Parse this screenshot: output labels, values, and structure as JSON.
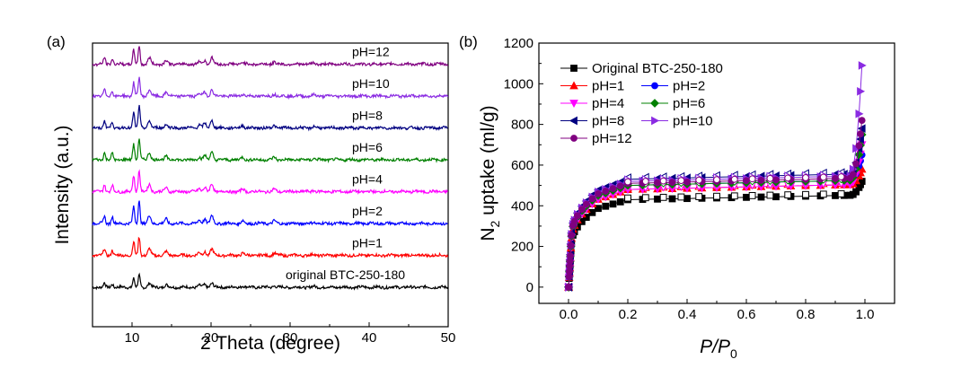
{
  "chart_data": [
    {
      "panel_label": "(a)",
      "type": "line",
      "xlabel": "2 Theta (degree)",
      "ylabel": "Intensity (a.u.)",
      "xlim": [
        5,
        50
      ],
      "xticks": [
        10,
        20,
        30,
        40,
        50
      ],
      "yticks_shown": false,
      "peak_positions_2theta": [
        6.5,
        7.5,
        10.2,
        10.9,
        12.2,
        14.3,
        18.5,
        19.2,
        20.1,
        24.0,
        28.0,
        33.0
      ],
      "series": [
        {
          "name": "original BTC-250-180",
          "color": "#000000",
          "offset": 0,
          "peak_height": 0.55
        },
        {
          "name": "pH=1",
          "color": "#ff0000",
          "offset": 1,
          "peak_height": 0.85
        },
        {
          "name": "pH=2",
          "color": "#0000ff",
          "offset": 2,
          "peak_height": 1.05
        },
        {
          "name": "pH=4",
          "color": "#ff00ff",
          "offset": 3,
          "peak_height": 1.0
        },
        {
          "name": "pH=6",
          "color": "#008000",
          "offset": 4,
          "peak_height": 1.0
        },
        {
          "name": "pH=8",
          "color": "#000080",
          "offset": 5,
          "peak_height": 1.0
        },
        {
          "name": "pH=10",
          "color": "#8a2be2",
          "offset": 6,
          "peak_height": 0.85
        },
        {
          "name": "pH=12",
          "color": "#800080",
          "offset": 7,
          "peak_height": 0.85
        }
      ]
    },
    {
      "panel_label": "(b)",
      "type": "scatter",
      "xlabel_main": "P/P",
      "xlabel_sub": "0",
      "ylabel_main": "N",
      "ylabel_sub": "2",
      "ylabel_rest": " uptake (ml/g)",
      "xlim": [
        -0.1,
        1.1
      ],
      "ylim": [
        -80,
        1200
      ],
      "xticks": [
        "0.0",
        "0.2",
        "0.4",
        "0.6",
        "0.8",
        "1.0"
      ],
      "yticks": [
        0,
        200,
        400,
        600,
        800,
        1000,
        1200
      ],
      "legend": "top-left",
      "series": [
        {
          "name": "Original BTC-250-180",
          "color": "#000000",
          "marker": "square",
          "plateau": 430,
          "top": 520
        },
        {
          "name": "pH=1",
          "color": "#ff0000",
          "marker": "triangle-up",
          "plateau": 480,
          "top": 580
        },
        {
          "name": "pH=2",
          "color": "#0000ff",
          "marker": "circle",
          "plateau": 500,
          "top": 650
        },
        {
          "name": "pH=4",
          "color": "#ff00ff",
          "marker": "triangle-down",
          "plateau": 480,
          "top": 700
        },
        {
          "name": "pH=6",
          "color": "#008000",
          "marker": "diamond",
          "plateau": 500,
          "top": 750
        },
        {
          "name": "pH=8",
          "color": "#000080",
          "marker": "triangle-left",
          "plateau": 530,
          "top": 780
        },
        {
          "name": "pH=10",
          "color": "#8a2be2",
          "marker": "triangle-right",
          "plateau": 520,
          "top": 1090
        },
        {
          "name": "pH=12",
          "color": "#800080",
          "marker": "circle",
          "plateau": 510,
          "top": 820
        }
      ]
    }
  ]
}
